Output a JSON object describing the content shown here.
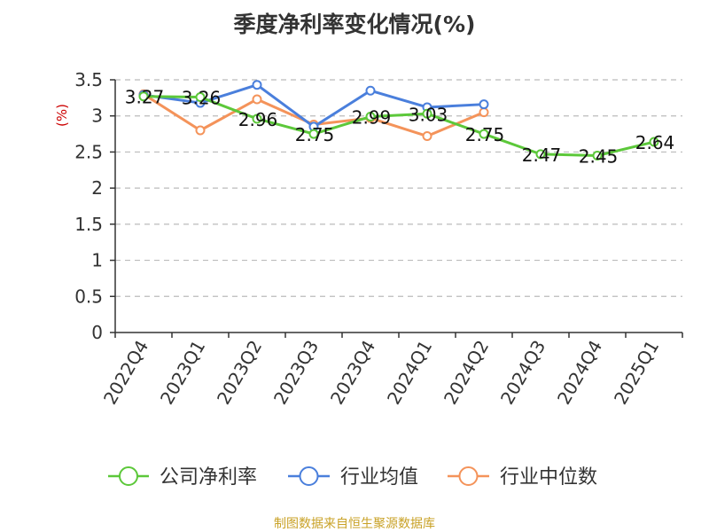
{
  "chart_data": {
    "type": "line",
    "title": "季度净利率变化情况(%)",
    "ylabel": "(%)",
    "ylim": [
      0,
      3.5
    ],
    "yticks": [
      0,
      0.5,
      1,
      1.5,
      2,
      2.5,
      3,
      3.5
    ],
    "grid": true,
    "legend_position": "bottom",
    "categories": [
      "2022Q4",
      "2023Q1",
      "2023Q2",
      "2023Q3",
      "2023Q4",
      "2024Q1",
      "2024Q2",
      "2024Q3",
      "2024Q4",
      "2025Q1"
    ],
    "series": [
      {
        "name": "公司净利率",
        "color": "#5cc83a",
        "values": [
          3.27,
          3.26,
          2.96,
          2.75,
          2.99,
          3.03,
          2.75,
          2.47,
          2.45,
          2.64
        ],
        "labeled": true
      },
      {
        "name": "行业均值",
        "color": "#4a7fdc",
        "values": [
          3.29,
          3.18,
          3.43,
          2.85,
          3.35,
          3.12,
          3.16,
          null,
          null,
          null
        ],
        "labeled": false
      },
      {
        "name": "行业中位数",
        "color": "#f4935a",
        "values": [
          3.3,
          2.8,
          3.23,
          2.88,
          2.97,
          2.72,
          3.05,
          null,
          null,
          null
        ],
        "labeled": false
      }
    ]
  },
  "footer": {
    "source": "制图数据来自恒生聚源数据库"
  }
}
